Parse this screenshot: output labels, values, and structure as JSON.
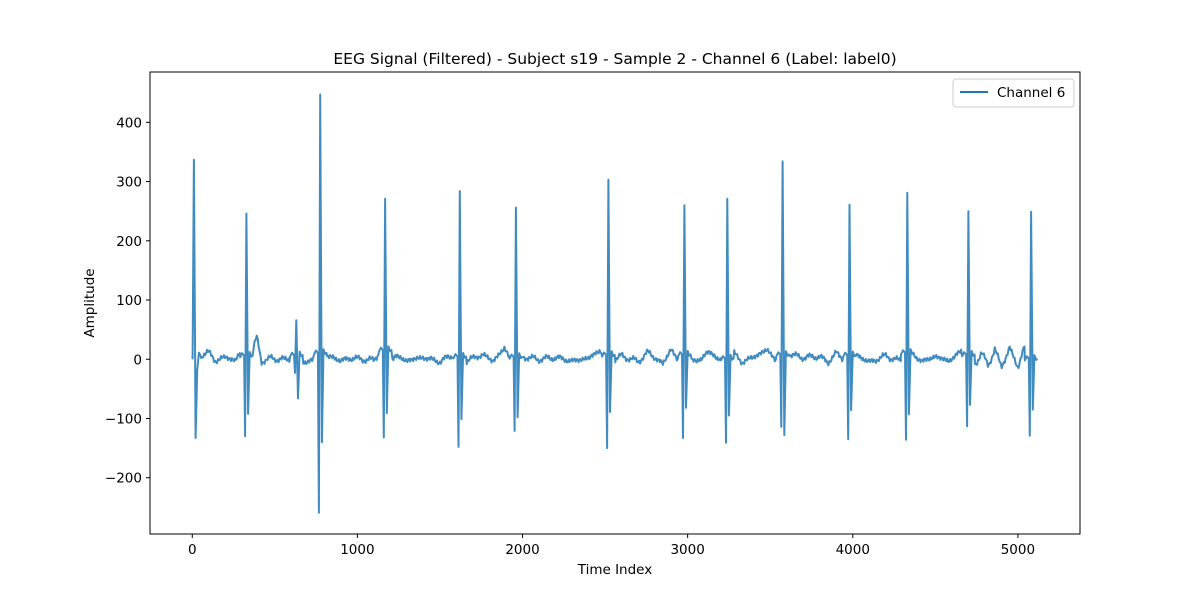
{
  "chart_data": {
    "type": "line",
    "title": "EEG Signal (Filtered) - Subject s19 - Sample 2 - Channel 6 (Label: label0)",
    "xlabel": "Time Index",
    "ylabel": "Amplitude",
    "xlim": [
      -256,
      5376
    ],
    "ylim": [
      -295,
      485
    ],
    "xticks": [
      0,
      1000,
      2000,
      3000,
      4000,
      5000
    ],
    "yticks": [
      -200,
      -100,
      0,
      100,
      200,
      300,
      400
    ],
    "xtick_labels": [
      "0",
      "1000",
      "2000",
      "3000",
      "4000",
      "5000"
    ],
    "ytick_labels": [
      "−200",
      "−100",
      "0",
      "100",
      "200",
      "300",
      "400"
    ],
    "grid": false,
    "legend_position": "top-right",
    "series": [
      {
        "name": "Channel 6",
        "color": "#1f77b4",
        "x_start": 0,
        "x_end": 5119,
        "baseline_points": [
          [
            0,
            5
          ],
          [
            40,
            -10
          ],
          [
            60,
            8
          ],
          [
            100,
            12
          ],
          [
            140,
            -3
          ],
          [
            200,
            4
          ],
          [
            260,
            -2
          ],
          [
            290,
            12
          ],
          [
            345,
            -5
          ],
          [
            390,
            38
          ],
          [
            420,
            -4
          ],
          [
            480,
            2
          ],
          [
            560,
            -1
          ],
          [
            610,
            3
          ],
          [
            700,
            -6
          ],
          [
            760,
            5
          ],
          [
            850,
            4
          ],
          [
            900,
            -3
          ],
          [
            950,
            2
          ],
          [
            1000,
            1
          ],
          [
            1100,
            -2
          ],
          [
            1150,
            20
          ],
          [
            1190,
            -3
          ],
          [
            1230,
            5
          ],
          [
            1300,
            -2
          ],
          [
            1400,
            3
          ],
          [
            1500,
            -4
          ],
          [
            1580,
            8
          ],
          [
            1640,
            -6
          ],
          [
            1700,
            2
          ],
          [
            1760,
            8
          ],
          [
            1820,
            -3
          ],
          [
            1890,
            18
          ],
          [
            1940,
            -5
          ],
          [
            2000,
            4
          ],
          [
            2100,
            0
          ],
          [
            2200,
            3
          ],
          [
            2300,
            -3
          ],
          [
            2400,
            2
          ],
          [
            2470,
            15
          ],
          [
            2540,
            -4
          ],
          [
            2600,
            6
          ],
          [
            2700,
            -4
          ],
          [
            2760,
            12
          ],
          [
            2850,
            -8
          ],
          [
            2900,
            18
          ],
          [
            2940,
            -2
          ],
          [
            3000,
            4
          ],
          [
            3050,
            -6
          ],
          [
            3100,
            8
          ],
          [
            3160,
            10
          ],
          [
            3220,
            -12
          ],
          [
            3280,
            10
          ],
          [
            3330,
            -5
          ],
          [
            3400,
            4
          ],
          [
            3480,
            16
          ],
          [
            3540,
            -3
          ],
          [
            3620,
            8
          ],
          [
            3700,
            3
          ],
          [
            3800,
            5
          ],
          [
            3850,
            -6
          ],
          [
            3900,
            12
          ],
          [
            3950,
            -4
          ],
          [
            4020,
            8
          ],
          [
            4100,
            -5
          ],
          [
            4200,
            6
          ],
          [
            4280,
            -3
          ],
          [
            4360,
            10
          ],
          [
            4420,
            -4
          ],
          [
            4500,
            5
          ],
          [
            4580,
            -3
          ],
          [
            4660,
            14
          ],
          [
            4740,
            -10
          ],
          [
            4780,
            12
          ],
          [
            4820,
            -12
          ],
          [
            4860,
            18
          ],
          [
            4900,
            -14
          ],
          [
            4950,
            20
          ],
          [
            5000,
            -15
          ],
          [
            5040,
            24
          ],
          [
            5080,
            -5
          ],
          [
            5119,
            2
          ]
        ],
        "spikes": [
          {
            "x": 10,
            "peak": 337,
            "trough": -133
          },
          {
            "x": 328,
            "peak": 246,
            "trough": -130,
            "rebound": -92
          },
          {
            "x": 775,
            "peak": 447,
            "trough": -259,
            "rebound": -140
          },
          {
            "x": 1168,
            "peak": 271,
            "trough": -132,
            "rebound": -91
          },
          {
            "x": 1620,
            "peak": 284,
            "trough": -148,
            "rebound": -101
          },
          {
            "x": 1960,
            "peak": 256,
            "trough": -121,
            "rebound": -98
          },
          {
            "x": 2520,
            "peak": 303,
            "trough": -150,
            "rebound": -89
          },
          {
            "x": 2980,
            "peak": 260,
            "trough": -133,
            "rebound": -82
          },
          {
            "x": 3240,
            "peak": 271,
            "trough": -141,
            "rebound": -95
          },
          {
            "x": 3575,
            "peak": 334,
            "trough": -114,
            "rebound": -128
          },
          {
            "x": 3980,
            "peak": 261,
            "trough": -135,
            "rebound": -86
          },
          {
            "x": 4330,
            "peak": 281,
            "trough": -136,
            "rebound": -93
          },
          {
            "x": 4700,
            "peak": 250,
            "trough": -113,
            "rebound": -77
          },
          {
            "x": 5080,
            "peak": 249,
            "trough": -129,
            "rebound": -85
          }
        ],
        "minor_events": [
          {
            "x": 630,
            "peak": 66,
            "trough": -23,
            "rebound": -66
          }
        ]
      }
    ]
  }
}
